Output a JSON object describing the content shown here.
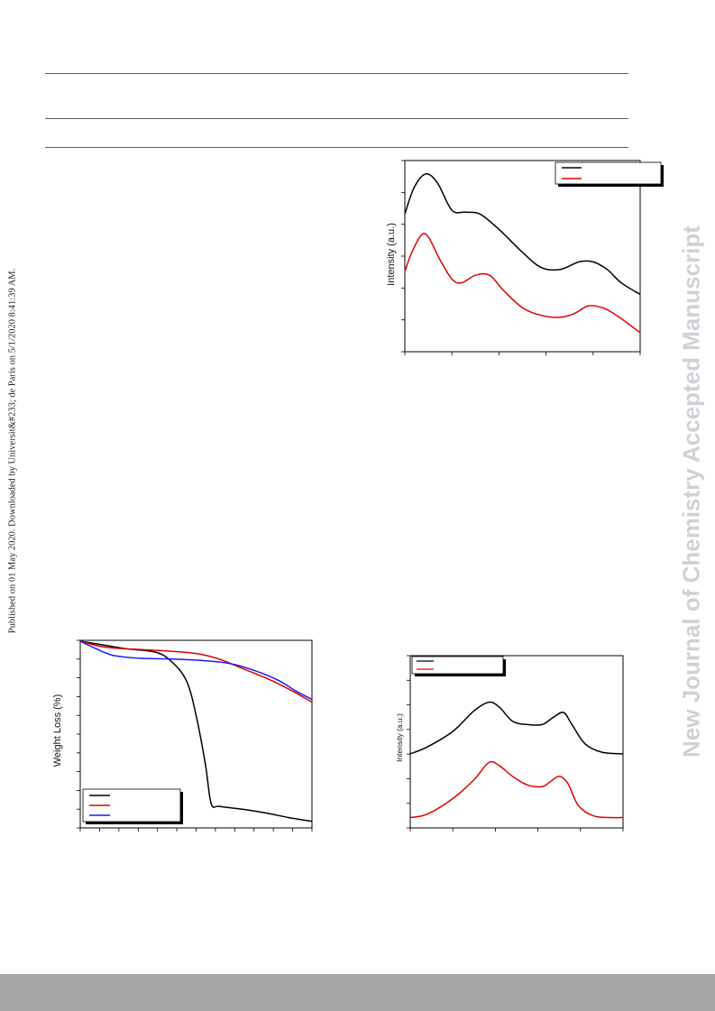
{
  "side_note": "Published on 01 May 2020. Downloaded by Universit&#233; de Paris on 5/1/2020 8:41:39 AM.",
  "watermark": "New Journal of Chemistry Accepted Manuscript",
  "colors": {
    "black": "#000000",
    "red": "#e00000",
    "blue": "#1a1aff",
    "watermark": "#cfd1d6",
    "footer": "#a5a5a5"
  },
  "chart_data": [
    {
      "type": "line",
      "ylabel": "Intensity (a.u.)",
      "legend": "top-right",
      "ticks_x": 5,
      "ticks_y": 6,
      "series": [
        {
          "color": "#000000",
          "points": [
            [
              0,
              0.72
            ],
            [
              0.04,
              0.86
            ],
            [
              0.09,
              0.93
            ],
            [
              0.14,
              0.88
            ],
            [
              0.2,
              0.74
            ],
            [
              0.26,
              0.73
            ],
            [
              0.32,
              0.72
            ],
            [
              0.4,
              0.64
            ],
            [
              0.5,
              0.52
            ],
            [
              0.58,
              0.44
            ],
            [
              0.66,
              0.43
            ],
            [
              0.74,
              0.47
            ],
            [
              0.8,
              0.47
            ],
            [
              0.86,
              0.43
            ],
            [
              0.92,
              0.36
            ],
            [
              1,
              0.3
            ]
          ]
        },
        {
          "color": "#e00000",
          "points": [
            [
              0,
              0.42
            ],
            [
              0.03,
              0.52
            ],
            [
              0.07,
              0.61
            ],
            [
              0.1,
              0.6
            ],
            [
              0.15,
              0.48
            ],
            [
              0.2,
              0.38
            ],
            [
              0.24,
              0.36
            ],
            [
              0.3,
              0.4
            ],
            [
              0.36,
              0.4
            ],
            [
              0.42,
              0.32
            ],
            [
              0.5,
              0.23
            ],
            [
              0.58,
              0.19
            ],
            [
              0.66,
              0.18
            ],
            [
              0.72,
              0.2
            ],
            [
              0.78,
              0.24
            ],
            [
              0.84,
              0.23
            ],
            [
              0.9,
              0.19
            ],
            [
              1,
              0.1
            ]
          ]
        }
      ]
    },
    {
      "type": "line",
      "ylabel": "Weight Loss (%)",
      "legend": "bottom-left",
      "ticks_x": 12,
      "ticks_y": 10,
      "series": [
        {
          "color": "#000000",
          "points": [
            [
              0,
              0.995
            ],
            [
              0.1,
              0.975
            ],
            [
              0.2,
              0.955
            ],
            [
              0.33,
              0.935
            ],
            [
              0.4,
              0.88
            ],
            [
              0.46,
              0.78
            ],
            [
              0.5,
              0.6
            ],
            [
              0.54,
              0.34
            ],
            [
              0.565,
              0.13
            ],
            [
              0.6,
              0.115
            ],
            [
              0.7,
              0.1
            ],
            [
              0.8,
              0.08
            ],
            [
              0.9,
              0.055
            ],
            [
              1,
              0.035
            ]
          ]
        },
        {
          "color": "#e00000",
          "points": [
            [
              0,
              0.995
            ],
            [
              0.1,
              0.965
            ],
            [
              0.2,
              0.955
            ],
            [
              0.35,
              0.945
            ],
            [
              0.5,
              0.93
            ],
            [
              0.6,
              0.9
            ],
            [
              0.7,
              0.85
            ],
            [
              0.8,
              0.8
            ],
            [
              0.9,
              0.74
            ],
            [
              1,
              0.67
            ]
          ]
        },
        {
          "color": "#1a1aff",
          "points": [
            [
              0,
              0.995
            ],
            [
              0.06,
              0.96
            ],
            [
              0.14,
              0.92
            ],
            [
              0.25,
              0.905
            ],
            [
              0.4,
              0.9
            ],
            [
              0.55,
              0.89
            ],
            [
              0.65,
              0.875
            ],
            [
              0.75,
              0.84
            ],
            [
              0.85,
              0.79
            ],
            [
              0.93,
              0.73
            ],
            [
              1,
              0.685
            ]
          ]
        }
      ]
    },
    {
      "type": "line",
      "ylabel": "Intensity (a.u.)",
      "legend": "top-left",
      "ticks_x": 5,
      "ticks_y": 7,
      "series": [
        {
          "color": "#000000",
          "points": [
            [
              0,
              0.43
            ],
            [
              0.08,
              0.47
            ],
            [
              0.2,
              0.56
            ],
            [
              0.3,
              0.68
            ],
            [
              0.37,
              0.73
            ],
            [
              0.42,
              0.7
            ],
            [
              0.48,
              0.62
            ],
            [
              0.55,
              0.6
            ],
            [
              0.62,
              0.6
            ],
            [
              0.67,
              0.64
            ],
            [
              0.72,
              0.67
            ],
            [
              0.76,
              0.6
            ],
            [
              0.82,
              0.49
            ],
            [
              0.9,
              0.44
            ],
            [
              1,
              0.43
            ]
          ]
        },
        {
          "color": "#e00000",
          "points": [
            [
              0,
              0.06
            ],
            [
              0.08,
              0.08
            ],
            [
              0.2,
              0.17
            ],
            [
              0.3,
              0.28
            ],
            [
              0.37,
              0.38
            ],
            [
              0.42,
              0.36
            ],
            [
              0.48,
              0.3
            ],
            [
              0.55,
              0.25
            ],
            [
              0.62,
              0.24
            ],
            [
              0.66,
              0.27
            ],
            [
              0.7,
              0.3
            ],
            [
              0.74,
              0.26
            ],
            [
              0.79,
              0.13
            ],
            [
              0.86,
              0.07
            ],
            [
              0.94,
              0.06
            ],
            [
              1,
              0.06
            ]
          ]
        }
      ]
    }
  ]
}
